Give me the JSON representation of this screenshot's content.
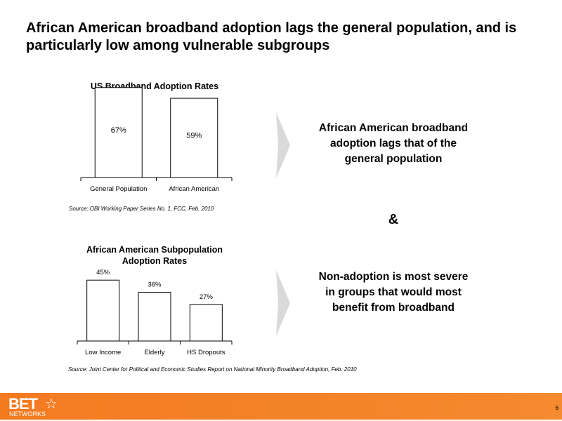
{
  "slide": {
    "title": "African American broadband adoption lags the general population, and is particularly low among vulnerable subgroups",
    "amp": "&",
    "callout1": "African American broadband adoption lags that of the general population",
    "callout2": "Non-adoption is most severe in groups that would most benefit from broadband",
    "page_number": "6",
    "logo_text": "BET",
    "logo_subtext": "NETWORKS",
    "accent_color": "#f47a20",
    "arrow_color": "#d9d9d9"
  },
  "chart_data": [
    {
      "type": "bar",
      "title": "US Broadband Adoption Rates",
      "categories": [
        "General Population",
        "African American"
      ],
      "values": [
        67,
        59
      ],
      "labels": [
        "67%",
        "59%"
      ],
      "ylim": [
        0,
        70
      ],
      "grid": false,
      "source": "Source:  OBI Working Paper Series No. 1, FCC, Feb. 2010"
    },
    {
      "type": "bar",
      "title": "African American Subpopulation Adoption Rates",
      "categories": [
        "Low Income",
        "Elderly",
        "HS Dropouts"
      ],
      "values": [
        45,
        36,
        27
      ],
      "labels": [
        "45%",
        "36%",
        "27%"
      ],
      "ylim": [
        0,
        70
      ],
      "grid": false,
      "source": "Source: Joint Center for Political and Economic Studies Report on National Minority Broadband Adoption, Feb. 2010"
    }
  ]
}
